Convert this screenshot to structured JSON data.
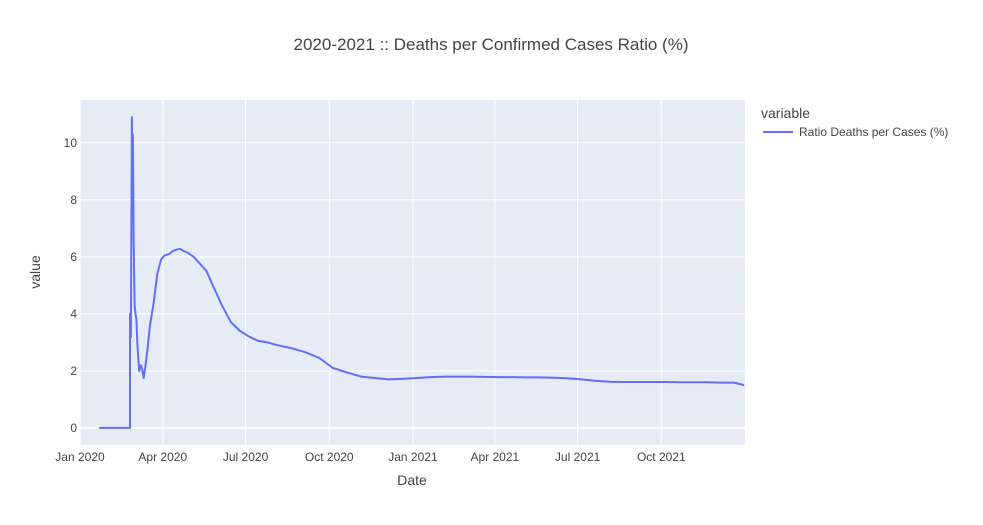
{
  "chart_data": {
    "type": "line",
    "title": "2020-2021 :: Deaths per Confirmed Cases Ratio (%)",
    "xlabel": "Date",
    "ylabel": "value",
    "x_tick_labels": [
      "Jan 2020",
      "Apr 2020",
      "Jul 2020",
      "Oct 2020",
      "Jan 2021",
      "Apr 2021",
      "Jul 2021",
      "Oct 2021"
    ],
    "x_tick_dates": [
      "2020-01-01",
      "2020-04-01",
      "2020-07-01",
      "2020-10-01",
      "2021-01-01",
      "2021-04-01",
      "2021-07-01",
      "2021-10-01"
    ],
    "y_tick_labels": [
      "0",
      "2",
      "4",
      "6",
      "8",
      "10"
    ],
    "y_tick_values": [
      0,
      2,
      4,
      6,
      8,
      10
    ],
    "xlim": [
      "2020-01-01",
      "2021-12-31"
    ],
    "ylim": [
      -0.6,
      11.5
    ],
    "grid": true,
    "legend_title": "variable",
    "legend_placement": "top-right",
    "colors": {
      "line": "#636efa",
      "plot_bg": "#e5ecf6",
      "grid": "#ffffff",
      "text": "#444444"
    },
    "series": [
      {
        "name": "Ratio Deaths per Cases (%)",
        "x": [
          "2020-01-22",
          "2020-02-15",
          "2020-02-25",
          "2020-02-25",
          "2020-02-26",
          "2020-02-27",
          "2020-02-27",
          "2020-02-28",
          "2020-02-29",
          "2020-03-01",
          "2020-03-02",
          "2020-03-03",
          "2020-03-04",
          "2020-03-06",
          "2020-03-08",
          "2020-03-09",
          "2020-03-11",
          "2020-03-13",
          "2020-03-15",
          "2020-03-18",
          "2020-03-22",
          "2020-03-26",
          "2020-03-30",
          "2020-04-03",
          "2020-04-08",
          "2020-04-12",
          "2020-04-16",
          "2020-04-20",
          "2020-04-24",
          "2020-04-28",
          "2020-05-05",
          "2020-05-12",
          "2020-05-19",
          "2020-05-26",
          "2020-06-05",
          "2020-06-15",
          "2020-06-25",
          "2020-07-05",
          "2020-07-15",
          "2020-07-25",
          "2020-08-05",
          "2020-08-20",
          "2020-09-05",
          "2020-09-20",
          "2020-10-05",
          "2020-10-20",
          "2020-11-05",
          "2020-11-20",
          "2020-12-05",
          "2020-12-20",
          "2021-01-05",
          "2021-01-20",
          "2021-02-05",
          "2021-02-20",
          "2021-03-05",
          "2021-03-20",
          "2021-04-05",
          "2021-04-20",
          "2021-05-05",
          "2021-05-20",
          "2021-06-05",
          "2021-06-20",
          "2021-07-05",
          "2021-07-20",
          "2021-08-05",
          "2021-08-20",
          "2021-09-05",
          "2021-09-20",
          "2021-10-05",
          "2021-10-20",
          "2021-11-05",
          "2021-11-20",
          "2021-12-05",
          "2021-12-20",
          "2021-12-31"
        ],
        "values": [
          0,
          0,
          0,
          4.0,
          3.2,
          10.9,
          9.2,
          10.3,
          6.5,
          4.3,
          4.0,
          3.8,
          3.0,
          2.0,
          2.2,
          2.1,
          1.75,
          2.2,
          2.7,
          3.6,
          4.4,
          5.4,
          5.9,
          6.05,
          6.1,
          6.2,
          6.25,
          6.28,
          6.2,
          6.15,
          6.0,
          5.75,
          5.5,
          5.0,
          4.3,
          3.7,
          3.4,
          3.2,
          3.05,
          3.0,
          2.9,
          2.8,
          2.65,
          2.45,
          2.1,
          1.95,
          1.8,
          1.75,
          1.7,
          1.72,
          1.75,
          1.78,
          1.8,
          1.8,
          1.8,
          1.79,
          1.78,
          1.78,
          1.77,
          1.77,
          1.76,
          1.74,
          1.7,
          1.65,
          1.62,
          1.61,
          1.61,
          1.61,
          1.61,
          1.6,
          1.6,
          1.6,
          1.59,
          1.59,
          1.5
        ]
      }
    ]
  }
}
